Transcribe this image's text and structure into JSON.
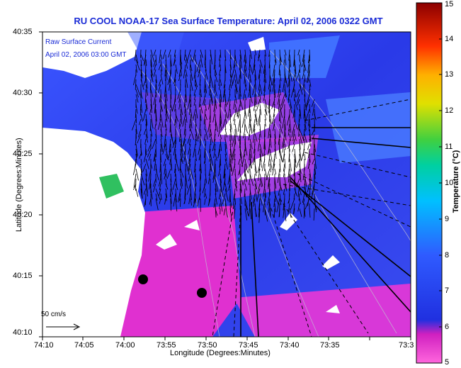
{
  "title": "RU COOL  NOAA-17  Sea Surface Temperature:  April 02, 2006 0322 GMT",
  "legend": {
    "line1": "Raw Surface Current",
    "line2": "April 02, 2006 03:00 GMT"
  },
  "scale_bar_label": "50 cm/s",
  "x_axis": {
    "label": "Longitude (Degrees:Minutes)",
    "ticks": [
      "74:10",
      "74:05",
      "74:00",
      "73:55",
      "73:50",
      "73:45",
      "73:40",
      "73:35",
      "73:3"
    ]
  },
  "y_axis": {
    "label": "Latitude (Degrees:Minutes)",
    "ticks": [
      "40:35",
      "40:30",
      "40:25",
      "40:20",
      "40:15",
      "40:10"
    ]
  },
  "colorbar": {
    "label": "Temperature (°C)",
    "ticks": [
      "15",
      "14",
      "13",
      "12",
      "11",
      "10",
      "9",
      "8",
      "7",
      "6",
      "5"
    ],
    "min": 5,
    "max": 15
  },
  "colors": {
    "title": "#1a2bd6",
    "land": "#ffffff",
    "cold": "#ff40d0",
    "warm": "#2040ff"
  }
}
